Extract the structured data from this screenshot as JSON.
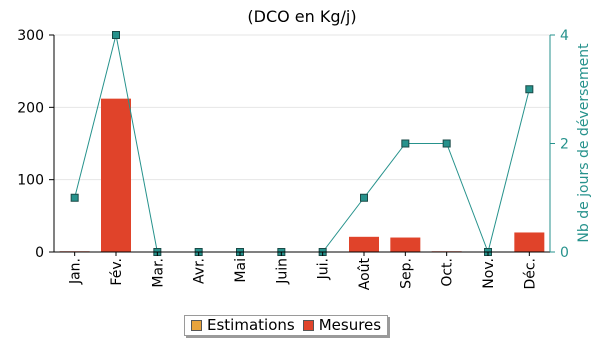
{
  "chart_data": {
    "type": "bar",
    "title": "(DCO en Kg/j)",
    "categories": [
      "Jan.",
      "Fév.",
      "Mar.",
      "Avr.",
      "Mai",
      "Juin",
      "Jui.",
      "Août",
      "Sep.",
      "Oct.",
      "Nov.",
      "Déc."
    ],
    "series": [
      {
        "name": "Estimations",
        "type": "bar",
        "axis": "left",
        "color": "#e8a33c",
        "values": [
          0,
          0,
          0,
          0,
          0,
          0,
          0,
          0,
          0,
          0,
          0,
          0
        ]
      },
      {
        "name": "Mesures",
        "type": "bar",
        "axis": "left",
        "color": "#e0432a",
        "values": [
          1,
          212,
          0,
          0,
          0,
          0,
          0,
          21,
          20,
          1,
          0,
          27
        ]
      },
      {
        "type": "line",
        "axis": "right",
        "color": "#26928c",
        "marker": "square",
        "values": [
          1,
          4,
          0,
          0,
          0,
          0,
          0,
          1,
          2,
          2,
          0,
          3
        ]
      }
    ],
    "y_left": {
      "ticks": [
        0,
        100,
        200,
        300
      ],
      "ylim": [
        0,
        300
      ]
    },
    "y_right": {
      "label": "Nb de jours de déversement",
      "ticks": [
        0,
        2,
        4
      ],
      "ylim": [
        0,
        4
      ]
    },
    "grid": true,
    "legend_position": "bottom"
  }
}
